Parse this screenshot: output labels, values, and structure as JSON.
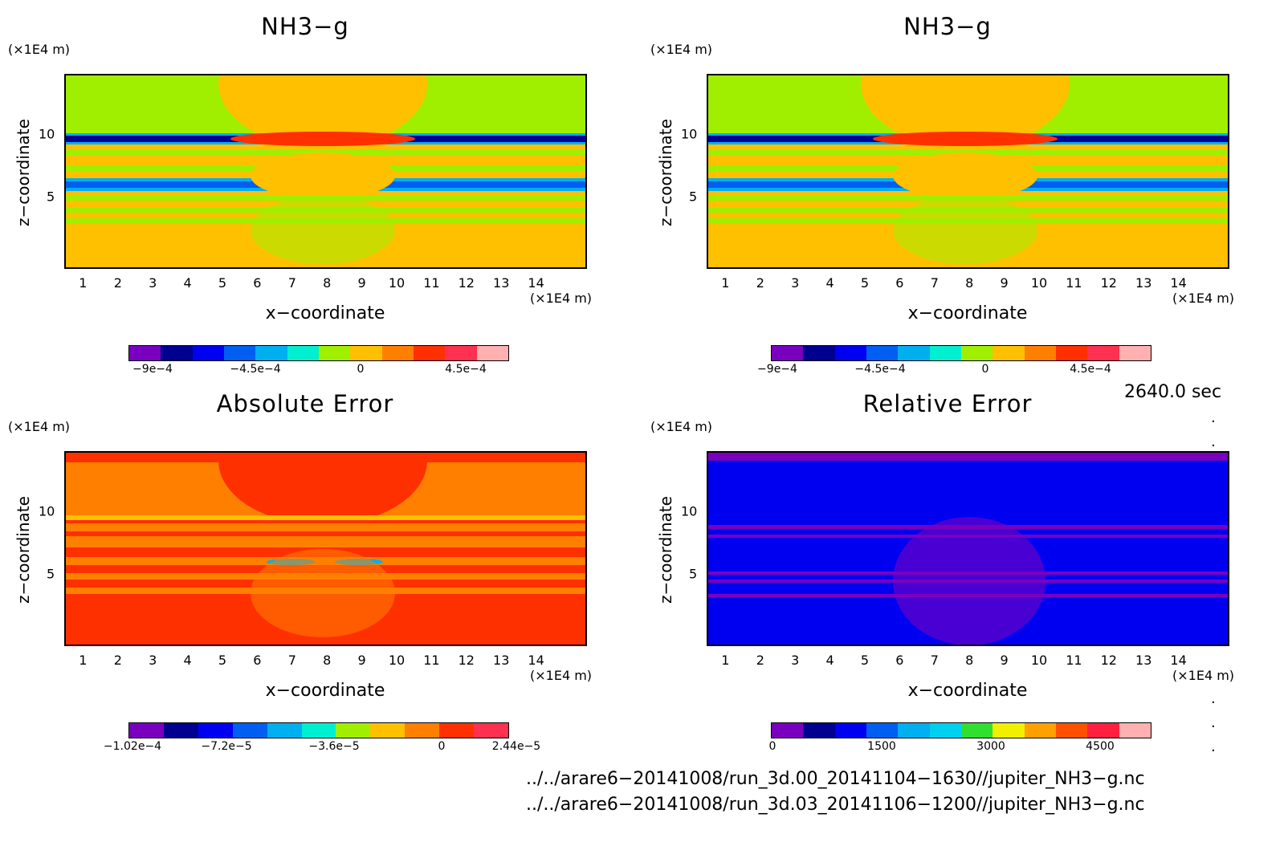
{
  "chart_data": [
    {
      "type": "heatmap",
      "title": "NH3−g",
      "xlabel": "x−coordinate",
      "ylabel": "z−coordinate",
      "xunit": "(×1E4 m)",
      "yunit": "(×1E4 m)",
      "xticks": [
        "1",
        "2",
        "3",
        "4",
        "5",
        "6",
        "7",
        "8",
        "9",
        "10",
        "11",
        "12",
        "13",
        "14"
      ],
      "yticks": [
        "5",
        "10"
      ],
      "xlim": [
        0,
        15
      ],
      "ylim": [
        0,
        15
      ],
      "colorbar": {
        "colors": [
          "#7a00c0",
          "#000090",
          "#0000f0",
          "#005ff0",
          "#00aff0",
          "#00efd0",
          "#a0ef00",
          "#ffc000",
          "#ff8000",
          "#ff3000",
          "#ff3050",
          "#ffb0b0"
        ],
        "ticks": [
          "−9e−4",
          "−4.5e−4",
          "0",
          "4.5e−4"
        ]
      }
    },
    {
      "type": "heatmap",
      "title": "NH3−g",
      "xlabel": "x−coordinate",
      "ylabel": "z−coordinate",
      "xunit": "(×1E4 m)",
      "yunit": "(×1E4 m)",
      "xticks": [
        "1",
        "2",
        "3",
        "4",
        "5",
        "6",
        "7",
        "8",
        "9",
        "10",
        "11",
        "12",
        "13",
        "14"
      ],
      "yticks": [
        "5",
        "10"
      ],
      "xlim": [
        0,
        15
      ],
      "ylim": [
        0,
        15
      ],
      "colorbar": {
        "colors": [
          "#7a00c0",
          "#000090",
          "#0000f0",
          "#005ff0",
          "#00aff0",
          "#00efd0",
          "#a0ef00",
          "#ffc000",
          "#ff8000",
          "#ff3000",
          "#ff3050",
          "#ffb0b0"
        ],
        "ticks": [
          "−9e−4",
          "−4.5e−4",
          "0",
          "4.5e−4"
        ]
      }
    },
    {
      "type": "heatmap",
      "title": "Absolute Error",
      "xlabel": "x−coordinate",
      "ylabel": "z−coordinate",
      "xunit": "(×1E4 m)",
      "yunit": "(×1E4 m)",
      "xticks": [
        "1",
        "2",
        "3",
        "4",
        "5",
        "6",
        "7",
        "8",
        "9",
        "10",
        "11",
        "12",
        "13",
        "14"
      ],
      "yticks": [
        "5",
        "10"
      ],
      "xlim": [
        0,
        15
      ],
      "ylim": [
        0,
        15
      ],
      "colorbar": {
        "colors": [
          "#7a00c0",
          "#000090",
          "#0000f0",
          "#005ff0",
          "#00aff0",
          "#00efd0",
          "#a0ef00",
          "#ffc000",
          "#ff8000",
          "#ff3000",
          "#ff3050"
        ],
        "ticks": [
          "−1.02e−4",
          "−7.2e−5",
          "−3.6e−5",
          "0",
          "2.44e−5"
        ]
      }
    },
    {
      "type": "heatmap",
      "title": "Relative Error",
      "xlabel": "x−coordinate",
      "ylabel": "z−coordinate",
      "xunit": "(×1E4 m)",
      "yunit": "(×1E4 m)",
      "xticks": [
        "1",
        "2",
        "3",
        "4",
        "5",
        "6",
        "7",
        "8",
        "9",
        "10",
        "11",
        "12",
        "13",
        "14"
      ],
      "yticks": [
        "5",
        "10"
      ],
      "xlim": [
        0,
        15
      ],
      "ylim": [
        0,
        15
      ],
      "colorbar": {
        "colors": [
          "#7a00c0",
          "#000090",
          "#0000f0",
          "#005ff0",
          "#00aff0",
          "#00d0f0",
          "#30e030",
          "#f0f000",
          "#ffa000",
          "#ff5000",
          "#ff2040",
          "#ffb0b0"
        ],
        "ticks": [
          "0",
          "1500",
          "3000",
          "4500"
        ]
      }
    }
  ],
  "footer": {
    "time": "2640.0 sec",
    "file1": "../../arare6−20141008/run_3d.00_20141104−1630//jupiter_NH3−g.nc",
    "file2": "../../arare6−20141008/run_3d.03_20141106−1200//jupiter_NH3−g.nc"
  }
}
